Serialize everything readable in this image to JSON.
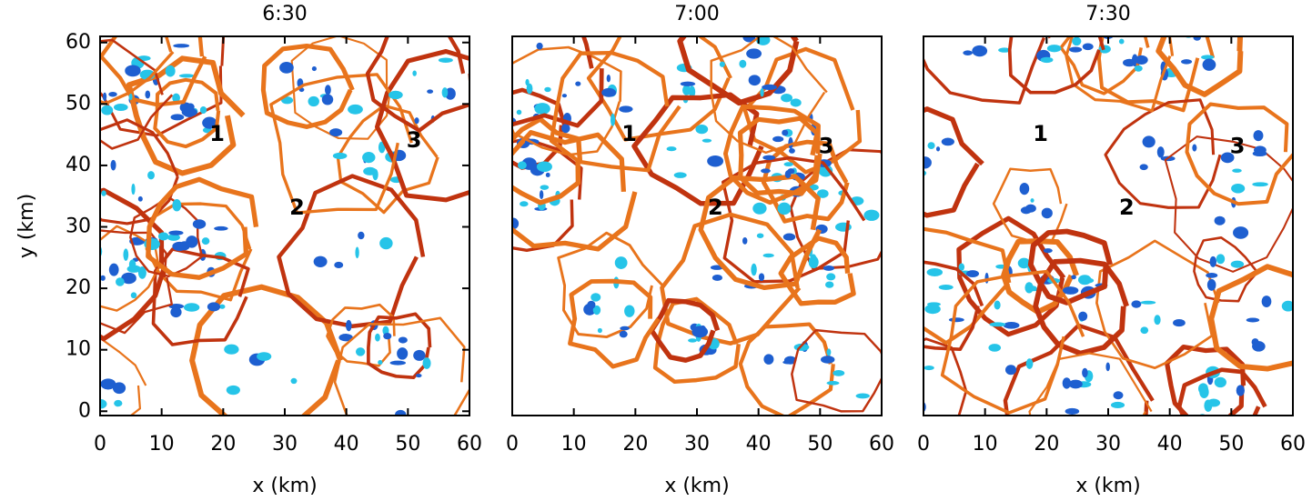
{
  "chart_data": [
    {
      "type": "contour",
      "title": "6:30",
      "xlabel": "x (km)",
      "ylabel": "y (km)",
      "xlim": [
        0,
        60
      ],
      "ylim": [
        -0.7,
        61
      ],
      "xticks": [
        0,
        10,
        20,
        30,
        40,
        50,
        60
      ],
      "yticks": [
        0,
        10,
        20,
        30,
        40,
        50,
        60
      ],
      "annotations": [
        {
          "text": "1",
          "x": 19,
          "y": 45
        },
        {
          "text": "2",
          "x": 32,
          "y": 33
        },
        {
          "text": "3",
          "x": 51,
          "y": 44
        }
      ]
    },
    {
      "type": "contour",
      "title": "7:00",
      "xlabel": "x (km)",
      "xlim": [
        0,
        60
      ],
      "ylim": [
        -0.7,
        61
      ],
      "xticks": [
        0,
        10,
        20,
        30,
        40,
        50,
        60
      ],
      "annotations": [
        {
          "text": "1",
          "x": 19,
          "y": 45
        },
        {
          "text": "2",
          "x": 33,
          "y": 33
        },
        {
          "text": "3",
          "x": 51,
          "y": 43
        }
      ]
    },
    {
      "type": "contour",
      "title": "7:30",
      "xlabel": "x (km)",
      "xlim": [
        0,
        60
      ],
      "ylim": [
        -0.7,
        61
      ],
      "xticks": [
        0,
        10,
        20,
        30,
        40,
        50,
        60
      ],
      "annotations": [
        {
          "text": "1",
          "x": 19,
          "y": 45
        },
        {
          "text": "2",
          "x": 33,
          "y": 33
        },
        {
          "text": "3",
          "x": 51,
          "y": 43
        }
      ]
    }
  ]
}
